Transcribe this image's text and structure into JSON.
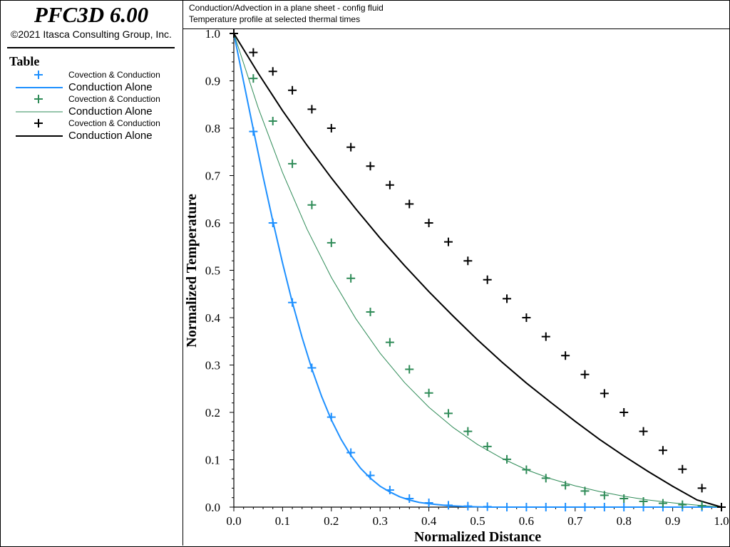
{
  "app": {
    "title": "PFC3D 6.00",
    "copyright": "©2021 Itasca Consulting Group, Inc."
  },
  "header": {
    "line1": "Conduction/Advection in a plane sheet - config fluid",
    "line2": "Temperature profile at selected thermal times"
  },
  "legend": {
    "title": "Table",
    "entries": [
      {
        "label": "Covection & Conduction",
        "kind": "marker",
        "color": "#1E90FF",
        "size": "small"
      },
      {
        "label": "Conduction Alone",
        "kind": "line",
        "color": "#1E90FF",
        "size": "large"
      },
      {
        "label": "Covection & Conduction",
        "kind": "marker",
        "color": "#2E8B57",
        "size": "small"
      },
      {
        "label": "Conduction Alone",
        "kind": "line",
        "color": "#2E8B57",
        "size": "large"
      },
      {
        "label": "Covection & Conduction",
        "kind": "marker",
        "color": "#000000",
        "size": "small"
      },
      {
        "label": "Conduction Alone",
        "kind": "line",
        "color": "#000000",
        "size": "large"
      }
    ]
  },
  "chart_data": {
    "type": "scatter",
    "title": "",
    "xlabel": "Normalized Distance",
    "ylabel": "Normalized Temperature",
    "xlim": [
      0,
      1
    ],
    "ylim": [
      0,
      1
    ],
    "xticks": [
      "0.0",
      "0.1",
      "0.2",
      "0.3",
      "0.4",
      "0.5",
      "0.6",
      "0.7",
      "0.8",
      "0.9",
      "1.0"
    ],
    "yticks": [
      "0.0",
      "0.1",
      "0.2",
      "0.3",
      "0.4",
      "0.5",
      "0.6",
      "0.7",
      "0.8",
      "0.9",
      "1.0"
    ],
    "grid": false,
    "legend_position": "left panel",
    "series": [
      {
        "kind": "marker",
        "color": "#1E90FF",
        "x": [
          0.0,
          0.04,
          0.08,
          0.12,
          0.16,
          0.2,
          0.24,
          0.28,
          0.32,
          0.36,
          0.4,
          0.44,
          0.48,
          0.52,
          0.56,
          0.6,
          0.64,
          0.68,
          0.72,
          0.76,
          0.8,
          0.84,
          0.88,
          0.92,
          0.96
        ],
        "y": [
          1.0,
          0.793,
          0.6,
          0.432,
          0.294,
          0.19,
          0.115,
          0.067,
          0.036,
          0.018,
          0.009,
          0.004,
          0.002,
          0.001,
          0.0,
          0.0,
          0.0,
          0.0,
          0.0,
          0.0,
          0.0,
          0.0,
          0.0,
          0.0,
          0.0
        ]
      },
      {
        "kind": "line",
        "color": "#1E90FF",
        "x": [
          0.0,
          0.02,
          0.04,
          0.06,
          0.08,
          0.1,
          0.12,
          0.14,
          0.16,
          0.18,
          0.2,
          0.22,
          0.24,
          0.26,
          0.28,
          0.3,
          0.32,
          0.34,
          0.36,
          0.38,
          0.4,
          0.44,
          0.48,
          0.52,
          0.56,
          0.6,
          0.7,
          0.8,
          0.9,
          1.0
        ],
        "y": [
          1.0,
          0.898,
          0.797,
          0.698,
          0.604,
          0.515,
          0.432,
          0.358,
          0.292,
          0.234,
          0.184,
          0.143,
          0.109,
          0.082,
          0.061,
          0.044,
          0.032,
          0.022,
          0.015,
          0.01,
          0.007,
          0.003,
          0.001,
          0.0,
          0.0,
          0.0,
          0.0,
          0.0,
          0.0,
          0.0
        ]
      },
      {
        "kind": "marker",
        "color": "#2E8B57",
        "x": [
          0.04,
          0.08,
          0.12,
          0.16,
          0.2,
          0.24,
          0.28,
          0.32,
          0.36,
          0.4,
          0.44,
          0.48,
          0.52,
          0.56,
          0.6,
          0.64,
          0.68,
          0.72,
          0.76,
          0.8,
          0.84,
          0.88,
          0.92,
          0.96
        ],
        "y": [
          0.905,
          0.815,
          0.725,
          0.638,
          0.558,
          0.483,
          0.412,
          0.348,
          0.291,
          0.241,
          0.198,
          0.16,
          0.128,
          0.101,
          0.079,
          0.061,
          0.046,
          0.034,
          0.025,
          0.018,
          0.012,
          0.008,
          0.005,
          0.003
        ]
      },
      {
        "kind": "line",
        "color": "#2E8B57",
        "x": [
          0.0,
          0.05,
          0.1,
          0.15,
          0.2,
          0.25,
          0.3,
          0.35,
          0.4,
          0.45,
          0.5,
          0.55,
          0.6,
          0.65,
          0.7,
          0.75,
          0.8,
          0.85,
          0.9,
          0.95,
          1.0
        ],
        "y": [
          1.0,
          0.843,
          0.706,
          0.587,
          0.485,
          0.398,
          0.325,
          0.263,
          0.211,
          0.168,
          0.132,
          0.103,
          0.079,
          0.06,
          0.045,
          0.033,
          0.023,
          0.015,
          0.009,
          0.004,
          0.0
        ]
      },
      {
        "kind": "marker",
        "color": "#000000",
        "x": [
          0.0,
          0.04,
          0.08,
          0.12,
          0.16,
          0.2,
          0.24,
          0.28,
          0.32,
          0.36,
          0.4,
          0.44,
          0.48,
          0.52,
          0.56,
          0.6,
          0.64,
          0.68,
          0.72,
          0.76,
          0.8,
          0.84,
          0.88,
          0.92,
          0.96,
          1.0
        ],
        "y": [
          1.0,
          0.96,
          0.92,
          0.88,
          0.84,
          0.8,
          0.76,
          0.72,
          0.68,
          0.64,
          0.6,
          0.56,
          0.52,
          0.48,
          0.44,
          0.4,
          0.36,
          0.32,
          0.28,
          0.24,
          0.2,
          0.16,
          0.12,
          0.08,
          0.04,
          0.0
        ]
      },
      {
        "kind": "line",
        "color": "#000000",
        "x": [
          0.0,
          0.05,
          0.1,
          0.15,
          0.2,
          0.25,
          0.3,
          0.35,
          0.4,
          0.45,
          0.5,
          0.55,
          0.6,
          0.65,
          0.7,
          0.75,
          0.8,
          0.85,
          0.9,
          0.95,
          1.0
        ],
        "y": [
          1.0,
          0.916,
          0.837,
          0.764,
          0.695,
          0.63,
          0.568,
          0.51,
          0.455,
          0.403,
          0.353,
          0.306,
          0.262,
          0.221,
          0.181,
          0.143,
          0.108,
          0.075,
          0.044,
          0.015,
          0.0
        ]
      }
    ]
  }
}
